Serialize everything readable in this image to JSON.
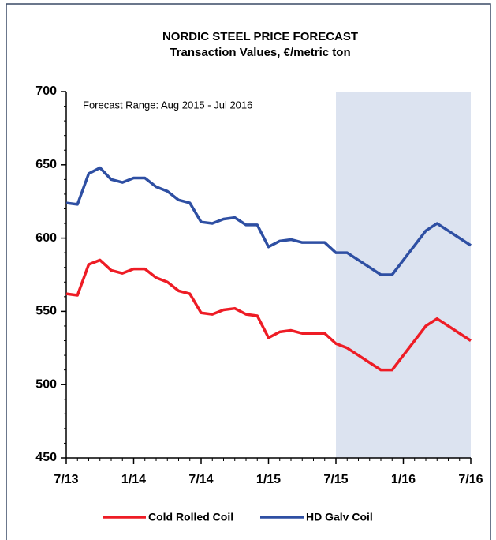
{
  "chart_data": {
    "type": "line",
    "title": "NORDIC STEEL PRICE FORECAST",
    "subtitle": "Transaction Values, €/metric ton",
    "annotation": "Forecast Range: Aug 2015 - Jul 2016",
    "categories": [
      "7/13",
      null,
      null,
      null,
      null,
      null,
      "1/14",
      null,
      null,
      null,
      null,
      null,
      "7/14",
      null,
      null,
      null,
      null,
      null,
      "1/15",
      null,
      null,
      null,
      null,
      null,
      "7/15",
      null,
      null,
      null,
      null,
      null,
      "1/16",
      null,
      null,
      null,
      null,
      null,
      "7/16"
    ],
    "series": [
      {
        "name": "Cold Rolled Coil",
        "color": "#ee1c25",
        "values": [
          562,
          561,
          582,
          585,
          578,
          576,
          579,
          579,
          573,
          570,
          564,
          562,
          549,
          548,
          551,
          552,
          548,
          547,
          532,
          536,
          537,
          535,
          535,
          535,
          528,
          525,
          520,
          515,
          510,
          510,
          520,
          530,
          540,
          545,
          540,
          535,
          530
        ]
      },
      {
        "name": "HD Galv Coil",
        "color": "#2e4fa3",
        "values": [
          624,
          623,
          644,
          648,
          640,
          638,
          641,
          641,
          635,
          632,
          626,
          624,
          611,
          610,
          613,
          614,
          609,
          609,
          594,
          598,
          599,
          597,
          597,
          597,
          590,
          590,
          585,
          580,
          575,
          575,
          585,
          595,
          605,
          610,
          605,
          600,
          595
        ]
      }
    ],
    "ylim": [
      450,
      700
    ],
    "yticks": [
      450,
      500,
      550,
      600,
      650,
      700
    ],
    "forecast_color": "#dce3f0",
    "grid": false,
    "legend": "bottom"
  }
}
